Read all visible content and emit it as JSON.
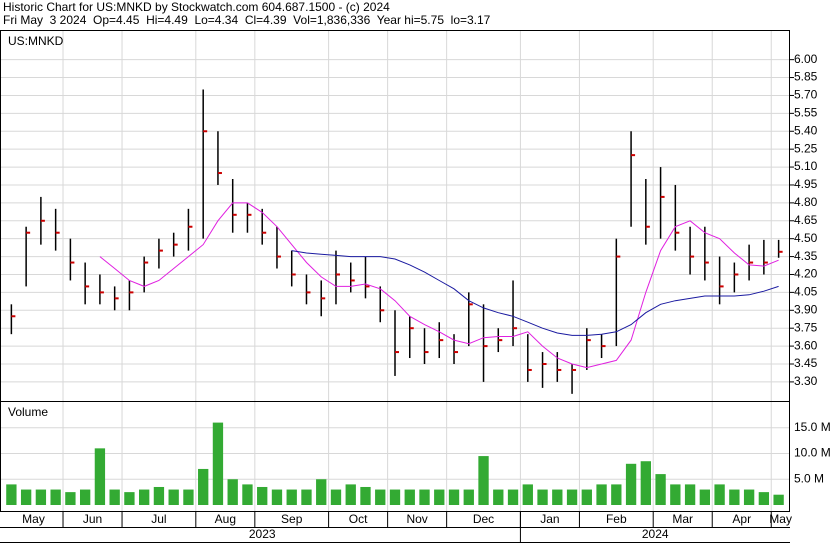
{
  "chart_data": {
    "type": "ohlc",
    "title": "Historic Chart for US:MNKD by Stockwatch.com 604.687.1500 - (c) 2024",
    "subtitle": "Fri May  3 2024  Op=4.45  Hi=4.49  Lo=4.34  Cl=4.39  Vol=1,836,336  Year hi=5.75  lo=3.17",
    "symbol": "US:MNKD",
    "categories": [
      "May",
      null,
      null,
      null,
      "Jun",
      null,
      null,
      null,
      "Jul",
      null,
      null,
      null,
      null,
      "Aug",
      null,
      null,
      null,
      "Sep",
      null,
      null,
      null,
      null,
      "Oct",
      null,
      null,
      null,
      "Nov",
      null,
      null,
      null,
      "Dec",
      null,
      null,
      null,
      null,
      "Jan",
      null,
      null,
      null,
      "Feb",
      null,
      null,
      null,
      null,
      "Mar",
      null,
      null,
      null,
      "Apr",
      null,
      null,
      null,
      "May"
    ],
    "year_categories": [
      "2023",
      null,
      null,
      null,
      null,
      null,
      null,
      null,
      null,
      null,
      null,
      null,
      null,
      null,
      null,
      null,
      null,
      null,
      null,
      null,
      null,
      null,
      null,
      null,
      null,
      null,
      null,
      null,
      null,
      null,
      null,
      null,
      null,
      null,
      null,
      "2024",
      null,
      null,
      null,
      null,
      null,
      null,
      null,
      null,
      null,
      null,
      null,
      null,
      null,
      null,
      null,
      null,
      null
    ],
    "high": [
      3.95,
      4.6,
      4.85,
      4.75,
      4.5,
      4.3,
      4.2,
      4.1,
      4.15,
      4.35,
      4.5,
      4.55,
      4.75,
      5.75,
      5.4,
      5.0,
      4.8,
      4.75,
      4.6,
      4.4,
      4.2,
      4.15,
      4.4,
      4.3,
      4.35,
      4.1,
      3.9,
      3.85,
      3.75,
      3.8,
      3.7,
      4.05,
      3.95,
      3.75,
      4.15,
      3.7,
      3.55,
      3.55,
      3.45,
      3.75,
      3.7,
      4.5,
      5.4,
      5.0,
      5.1,
      4.95,
      4.6,
      4.6,
      4.35,
      4.3,
      4.45,
      4.49,
      4.49
    ],
    "low": [
      3.7,
      4.1,
      4.45,
      4.4,
      4.15,
      3.95,
      3.95,
      3.9,
      3.9,
      4.05,
      4.25,
      4.35,
      4.4,
      4.5,
      4.95,
      4.55,
      4.55,
      4.45,
      4.25,
      4.1,
      3.95,
      3.85,
      3.95,
      4.05,
      4.0,
      3.8,
      3.35,
      3.5,
      3.45,
      3.5,
      3.45,
      3.6,
      3.3,
      3.55,
      3.6,
      3.3,
      3.25,
      3.3,
      3.2,
      3.4,
      3.5,
      3.6,
      4.6,
      4.45,
      4.5,
      4.4,
      4.2,
      4.15,
      3.95,
      4.05,
      4.15,
      4.2,
      4.34
    ],
    "close": [
      3.85,
      4.55,
      4.65,
      4.55,
      4.3,
      4.1,
      4.05,
      4.0,
      4.05,
      4.3,
      4.4,
      4.45,
      4.6,
      5.4,
      5.05,
      4.7,
      4.7,
      4.55,
      4.35,
      4.2,
      4.05,
      4.0,
      4.2,
      4.15,
      4.1,
      3.9,
      3.55,
      3.75,
      3.55,
      3.65,
      3.55,
      3.95,
      3.6,
      3.65,
      3.75,
      3.4,
      3.45,
      3.4,
      3.4,
      3.65,
      3.6,
      4.35,
      5.2,
      4.6,
      4.85,
      4.55,
      4.35,
      4.3,
      4.1,
      4.2,
      4.3,
      4.3,
      4.39
    ],
    "bar_color": "#000000",
    "close_color": "#cc0000",
    "moving_averages": [
      {
        "color": "#e020e0",
        "values": [
          null,
          null,
          null,
          null,
          null,
          null,
          4.35,
          4.25,
          4.15,
          4.1,
          4.15,
          4.25,
          4.35,
          4.45,
          4.65,
          4.8,
          4.8,
          4.72,
          4.6,
          4.45,
          4.3,
          4.18,
          4.1,
          4.1,
          4.12,
          4.08,
          3.98,
          3.85,
          3.78,
          3.72,
          3.65,
          3.62,
          3.67,
          3.68,
          3.68,
          3.72,
          3.6,
          3.5,
          3.45,
          3.42,
          3.45,
          3.48,
          3.65,
          4.05,
          4.4,
          4.6,
          4.65,
          4.55,
          4.5,
          4.38,
          4.28,
          4.27,
          4.32
        ]
      },
      {
        "color": "#1a1aa0",
        "values": [
          null,
          null,
          null,
          null,
          null,
          null,
          null,
          null,
          null,
          null,
          null,
          null,
          null,
          null,
          null,
          null,
          null,
          null,
          null,
          4.4,
          4.38,
          4.37,
          4.36,
          4.35,
          4.35,
          4.35,
          4.33,
          4.28,
          4.22,
          4.15,
          4.08,
          3.98,
          3.92,
          3.88,
          3.85,
          3.8,
          3.75,
          3.71,
          3.69,
          3.69,
          3.7,
          3.72,
          3.78,
          3.88,
          3.95,
          3.98,
          4.0,
          4.02,
          4.02,
          4.02,
          4.03,
          4.06,
          4.1
        ]
      }
    ],
    "ylim": [
      3.14,
      6.24
    ],
    "yticks": [
      {
        "value": 6.0,
        "label": "6.00"
      },
      5.85,
      {
        "value": 5.7,
        "label": "5.70"
      },
      5.55,
      {
        "value": 5.4,
        "label": "5.40"
      },
      5.25,
      {
        "value": 5.1,
        "label": "5.10"
      },
      4.95,
      {
        "value": 4.8,
        "label": "4.80"
      },
      4.65,
      {
        "value": 4.5,
        "label": "4.50"
      },
      4.35,
      {
        "value": 4.2,
        "label": "4.20"
      },
      4.05,
      {
        "value": 3.9,
        "label": "3.90"
      },
      3.75,
      {
        "value": 3.6,
        "label": "3.60"
      },
      3.45,
      {
        "value": 3.3,
        "label": "3.30"
      }
    ],
    "volume_title": "Volume",
    "volume": [
      4,
      3,
      3,
      3,
      2.5,
      3,
      11,
      3,
      2.5,
      3,
      3.5,
      3,
      3,
      7,
      16,
      5,
      4,
      3.5,
      3,
      3,
      3,
      5,
      3,
      4,
      3.5,
      3,
      3,
      3,
      3,
      3,
      3,
      3,
      9.5,
      3,
      3,
      4,
      3,
      3,
      3,
      3,
      4,
      4,
      8,
      8.5,
      6,
      4,
      4,
      3,
      4,
      3,
      3,
      2.5,
      2
    ],
    "volume_color": "#33aa33",
    "vlim": [
      0,
      20
    ],
    "vticks": [
      {
        "value": 5,
        "label": "5.0 M"
      },
      {
        "value": 10,
        "label": "10.0 M"
      },
      {
        "value": 15,
        "label": "15.0 M"
      }
    ],
    "grid": true
  }
}
